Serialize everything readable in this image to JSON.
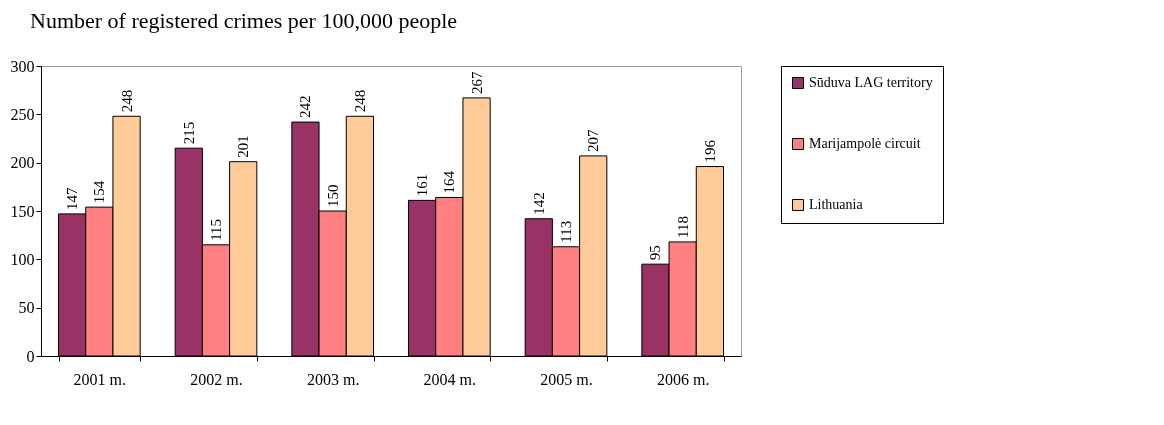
{
  "chart_data": {
    "type": "bar",
    "title": "Number of registered crimes per 100,000 people",
    "categories": [
      "2001 m.",
      "2002 m.",
      "2003 m.",
      "2004 m.",
      "2005 m.",
      "2006 m."
    ],
    "series": [
      {
        "name": "Sūduva LAG territory",
        "color": "#993366",
        "values": [
          147,
          215,
          242,
          161,
          142,
          95
        ]
      },
      {
        "name": "Marijampolė circuit",
        "color": "#ff8080",
        "values": [
          154,
          115,
          150,
          164,
          113,
          118
        ]
      },
      {
        "name": "Lithuania",
        "color": "#ffcc99",
        "values": [
          248,
          201,
          248,
          267,
          207,
          196
        ]
      }
    ],
    "ylim": [
      0,
      300
    ],
    "yticks": [
      0,
      50,
      100,
      150,
      200,
      250,
      300
    ],
    "grid": false,
    "legend": "right",
    "data_labels": true
  }
}
